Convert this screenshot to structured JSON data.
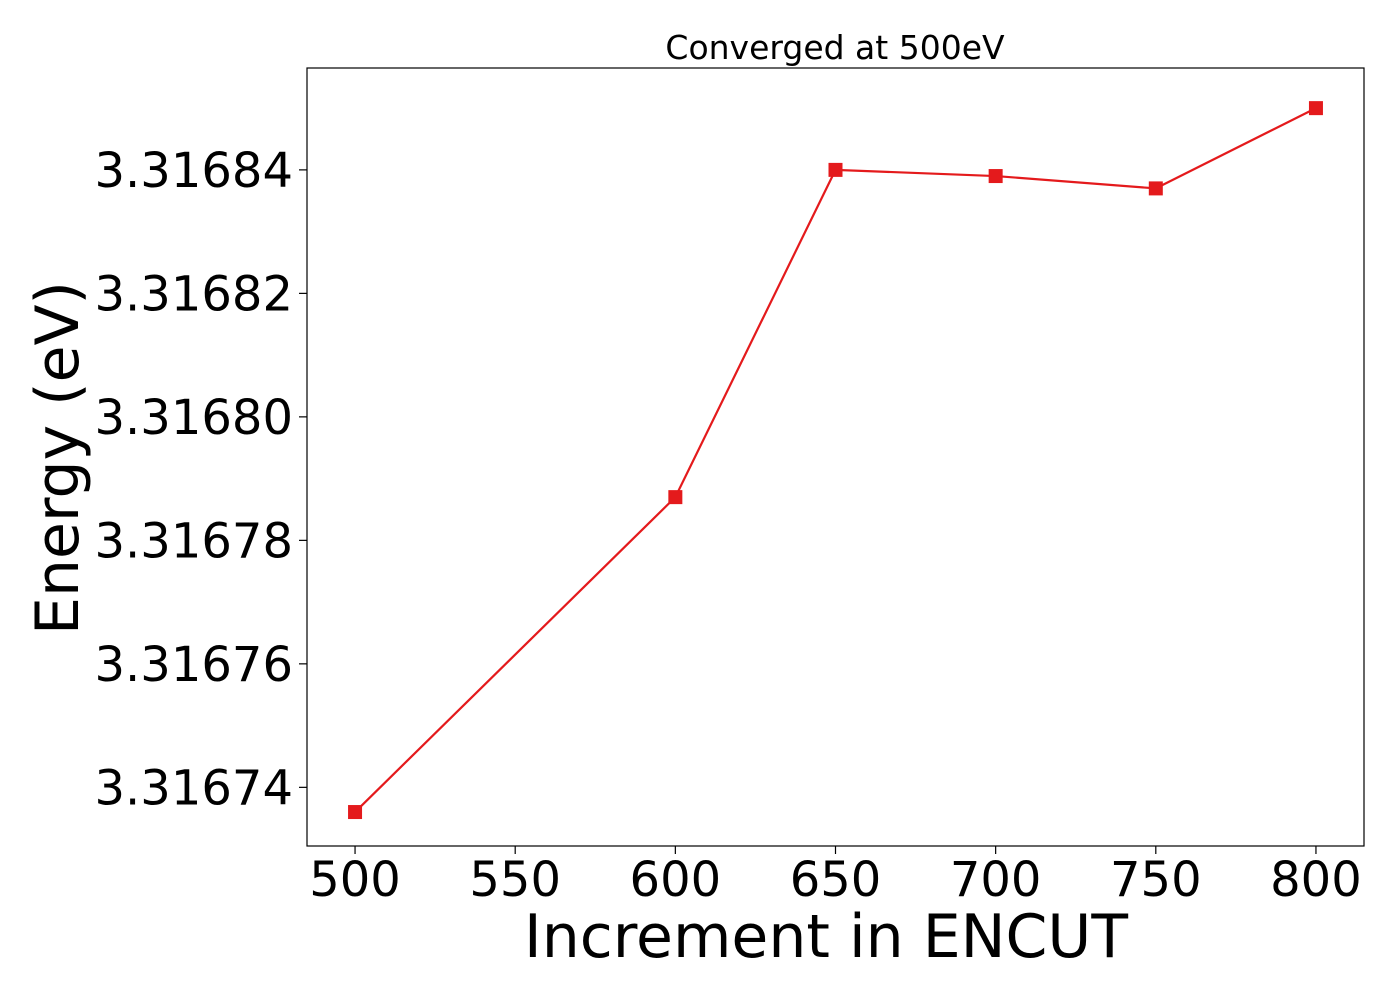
{
  "chart_data": {
    "type": "line",
    "title": "Converged at 500eV",
    "xlabel": "Increment in ENCUT",
    "ylabel": "Energy (eV)",
    "x": [
      500,
      600,
      650,
      700,
      750,
      800
    ],
    "series": [
      {
        "values": [
          3.316736,
          3.316787,
          3.31684,
          3.316839,
          3.316837,
          3.31685
        ],
        "color": "#e41a1c",
        "marker": "square"
      }
    ],
    "xlim": [
      485,
      815
    ],
    "ylim": [
      3.3167305,
      3.3168565
    ],
    "x_ticks": [
      500,
      550,
      600,
      650,
      700,
      750,
      800
    ],
    "x_tick_labels": [
      "500",
      "550",
      "600",
      "650",
      "700",
      "750",
      "800"
    ],
    "y_ticks": [
      3.31674,
      3.31676,
      3.31678,
      3.3168,
      3.31682,
      3.31684
    ],
    "y_tick_labels": [
      "3.31674",
      "3.31676",
      "3.31678",
      "3.31680",
      "3.31682",
      "3.31684"
    ],
    "grid": false,
    "legend": "none"
  }
}
